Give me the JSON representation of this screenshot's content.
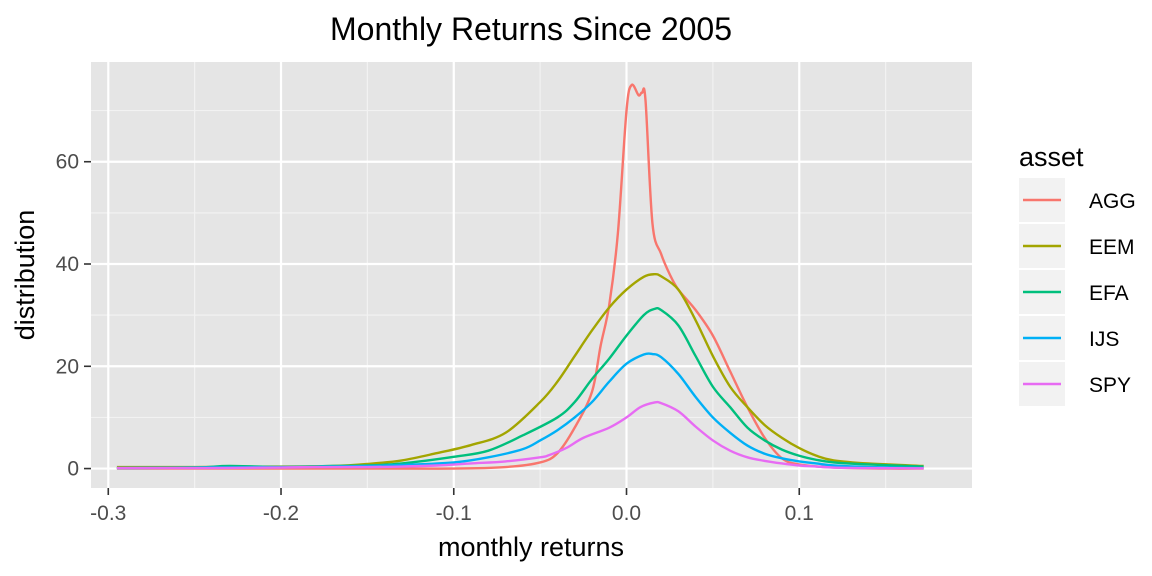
{
  "chart_data": {
    "type": "line",
    "title": "Monthly Returns Since 2005",
    "xlabel": "monthly returns",
    "ylabel": "distribution",
    "xlim": [
      -0.31,
      0.2
    ],
    "ylim": [
      -3.8,
      79.5
    ],
    "x_ticks": [
      -0.3,
      -0.2,
      -0.1,
      0.0,
      0.1
    ],
    "x_tick_labels": [
      "-0.3",
      "-0.2",
      "-0.1",
      "0.0",
      "0.1"
    ],
    "y_ticks": [
      0,
      20,
      40,
      60
    ],
    "y_tick_labels": [
      "0",
      "20",
      "40",
      "60"
    ],
    "grid": true,
    "background": "#e5e5e5",
    "legend": {
      "title": "asset",
      "position": "right"
    },
    "series": [
      {
        "name": "AGG",
        "color": "#f8766d",
        "points": [
          [
            -0.295,
            0
          ],
          [
            -0.15,
            0
          ],
          [
            -0.1,
            0
          ],
          [
            -0.07,
            0.3
          ],
          [
            -0.05,
            1.2
          ],
          [
            -0.04,
            3
          ],
          [
            -0.03,
            8
          ],
          [
            -0.02,
            15
          ],
          [
            -0.015,
            24
          ],
          [
            -0.01,
            32
          ],
          [
            -0.005,
            46
          ],
          [
            0.0,
            70
          ],
          [
            0.003,
            75
          ],
          [
            0.007,
            73
          ],
          [
            0.009,
            73.5
          ],
          [
            0.011,
            72
          ],
          [
            0.015,
            48
          ],
          [
            0.02,
            42
          ],
          [
            0.025,
            38
          ],
          [
            0.03,
            35
          ],
          [
            0.04,
            31
          ],
          [
            0.05,
            26
          ],
          [
            0.06,
            19
          ],
          [
            0.07,
            12
          ],
          [
            0.08,
            6
          ],
          [
            0.09,
            2
          ],
          [
            0.1,
            0.8
          ],
          [
            0.12,
            0.2
          ],
          [
            0.15,
            0
          ],
          [
            0.172,
            0
          ]
        ]
      },
      {
        "name": "EEM",
        "color": "#a3a500",
        "points": [
          [
            -0.295,
            0.3
          ],
          [
            -0.25,
            0.3
          ],
          [
            -0.2,
            0.4
          ],
          [
            -0.17,
            0.5
          ],
          [
            -0.15,
            0.9
          ],
          [
            -0.13,
            1.6
          ],
          [
            -0.11,
            3
          ],
          [
            -0.09,
            4.6
          ],
          [
            -0.07,
            7
          ],
          [
            -0.05,
            13
          ],
          [
            -0.04,
            17
          ],
          [
            -0.03,
            22
          ],
          [
            -0.02,
            27
          ],
          [
            -0.01,
            31.5
          ],
          [
            0.0,
            35
          ],
          [
            0.01,
            37.5
          ],
          [
            0.016,
            38
          ],
          [
            0.02,
            37.6
          ],
          [
            0.03,
            35
          ],
          [
            0.04,
            29
          ],
          [
            0.05,
            22
          ],
          [
            0.06,
            16
          ],
          [
            0.07,
            12
          ],
          [
            0.08,
            8.5
          ],
          [
            0.09,
            6
          ],
          [
            0.1,
            4
          ],
          [
            0.11,
            2.5
          ],
          [
            0.12,
            1.6
          ],
          [
            0.14,
            1
          ],
          [
            0.172,
            0.5
          ]
        ]
      },
      {
        "name": "EFA",
        "color": "#00bf7d",
        "points": [
          [
            -0.295,
            0.1
          ],
          [
            -0.25,
            0.2
          ],
          [
            -0.23,
            0.5
          ],
          [
            -0.2,
            0.3
          ],
          [
            -0.17,
            0.5
          ],
          [
            -0.15,
            0.6
          ],
          [
            -0.13,
            1
          ],
          [
            -0.1,
            2.3
          ],
          [
            -0.08,
            3.5
          ],
          [
            -0.06,
            6.5
          ],
          [
            -0.04,
            10
          ],
          [
            -0.03,
            13
          ],
          [
            -0.02,
            17.5
          ],
          [
            -0.01,
            21.5
          ],
          [
            0.0,
            26
          ],
          [
            0.01,
            30
          ],
          [
            0.016,
            31.2
          ],
          [
            0.02,
            31
          ],
          [
            0.03,
            28
          ],
          [
            0.04,
            22
          ],
          [
            0.05,
            16
          ],
          [
            0.06,
            12
          ],
          [
            0.07,
            8
          ],
          [
            0.08,
            5.5
          ],
          [
            0.09,
            3.7
          ],
          [
            0.1,
            2.5
          ],
          [
            0.11,
            1.7
          ],
          [
            0.12,
            1.2
          ],
          [
            0.14,
            0.8
          ],
          [
            0.172,
            0.4
          ]
        ]
      },
      {
        "name": "IJS",
        "color": "#00b0f6",
        "points": [
          [
            -0.295,
            0.1
          ],
          [
            -0.25,
            0.2
          ],
          [
            -0.2,
            0.3
          ],
          [
            -0.17,
            0.4
          ],
          [
            -0.15,
            0.5
          ],
          [
            -0.13,
            0.7
          ],
          [
            -0.1,
            1.2
          ],
          [
            -0.08,
            2.2
          ],
          [
            -0.06,
            3.8
          ],
          [
            -0.05,
            5.5
          ],
          [
            -0.04,
            7.5
          ],
          [
            -0.03,
            10
          ],
          [
            -0.02,
            13
          ],
          [
            -0.01,
            17
          ],
          [
            0.0,
            20.5
          ],
          [
            0.01,
            22.3
          ],
          [
            0.015,
            22.4
          ],
          [
            0.02,
            21.8
          ],
          [
            0.03,
            18.5
          ],
          [
            0.04,
            14
          ],
          [
            0.05,
            10
          ],
          [
            0.06,
            7
          ],
          [
            0.07,
            4.5
          ],
          [
            0.08,
            2.9
          ],
          [
            0.09,
            2
          ],
          [
            0.1,
            1.4
          ],
          [
            0.11,
            1
          ],
          [
            0.12,
            0.6
          ],
          [
            0.14,
            0.3
          ],
          [
            0.172,
            0.1
          ]
        ]
      },
      {
        "name": "SPY",
        "color": "#e76bf3",
        "points": [
          [
            -0.295,
            0.1
          ],
          [
            -0.25,
            0.1
          ],
          [
            -0.2,
            0.2
          ],
          [
            -0.18,
            0.3
          ],
          [
            -0.15,
            0.3
          ],
          [
            -0.13,
            0.4
          ],
          [
            -0.11,
            0.6
          ],
          [
            -0.09,
            1
          ],
          [
            -0.07,
            1.4
          ],
          [
            -0.05,
            2.2
          ],
          [
            -0.045,
            2.6
          ],
          [
            -0.035,
            4
          ],
          [
            -0.025,
            6
          ],
          [
            -0.01,
            8
          ],
          [
            0.0,
            10
          ],
          [
            0.008,
            12
          ],
          [
            0.016,
            12.9
          ],
          [
            0.02,
            12.8
          ],
          [
            0.03,
            11.2
          ],
          [
            0.04,
            8.2
          ],
          [
            0.05,
            5.5
          ],
          [
            0.06,
            3.5
          ],
          [
            0.07,
            2.2
          ],
          [
            0.08,
            1.5
          ],
          [
            0.09,
            1
          ],
          [
            0.1,
            0.6
          ],
          [
            0.11,
            0.4
          ],
          [
            0.12,
            0.2
          ],
          [
            0.14,
            0.1
          ],
          [
            0.172,
            0.05
          ]
        ]
      }
    ]
  }
}
